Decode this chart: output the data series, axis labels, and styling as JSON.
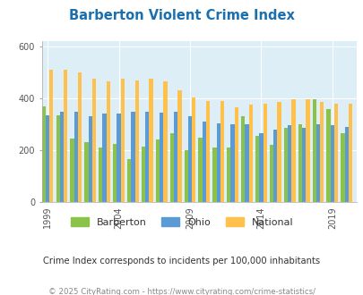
{
  "title": "Barberton Violent Crime Index",
  "title_color": "#1a6faf",
  "subtitle": "Crime Index corresponds to incidents per 100,000 inhabitants",
  "footer": "© 2025 CityRating.com - https://www.cityrating.com/crime-statistics/",
  "years": [
    1999,
    2000,
    2001,
    2002,
    2003,
    2004,
    2005,
    2006,
    2007,
    2008,
    2009,
    2010,
    2011,
    2012,
    2013,
    2014,
    2015,
    2016,
    2017,
    2018,
    2019,
    2020
  ],
  "barberton": [
    370,
    335,
    245,
    230,
    210,
    225,
    165,
    215,
    240,
    265,
    200,
    250,
    210,
    210,
    330,
    255,
    220,
    285,
    300,
    395,
    360,
    265
  ],
  "ohio": [
    335,
    350,
    350,
    330,
    340,
    340,
    350,
    350,
    345,
    350,
    330,
    310,
    305,
    300,
    300,
    265,
    280,
    295,
    285,
    300,
    295,
    290
  ],
  "national": [
    510,
    510,
    500,
    475,
    465,
    475,
    470,
    475,
    465,
    430,
    405,
    390,
    390,
    365,
    375,
    380,
    385,
    395,
    395,
    385,
    380,
    380
  ],
  "bar_colors": {
    "barberton": "#8bc34a",
    "ohio": "#5b9bd5",
    "national": "#ffc04c"
  },
  "bg_color": "#ddeef6",
  "fig_bg": "#ffffff",
  "ylim": [
    0,
    620
  ],
  "yticks": [
    0,
    200,
    400,
    600
  ],
  "xtick_labels": [
    "1999",
    "2004",
    "2009",
    "2014",
    "2019"
  ],
  "xtick_positions": [
    1999,
    2004,
    2009,
    2014,
    2019
  ],
  "legend_labels": [
    "Barberton",
    "Ohio",
    "National"
  ],
  "bar_width": 0.27
}
